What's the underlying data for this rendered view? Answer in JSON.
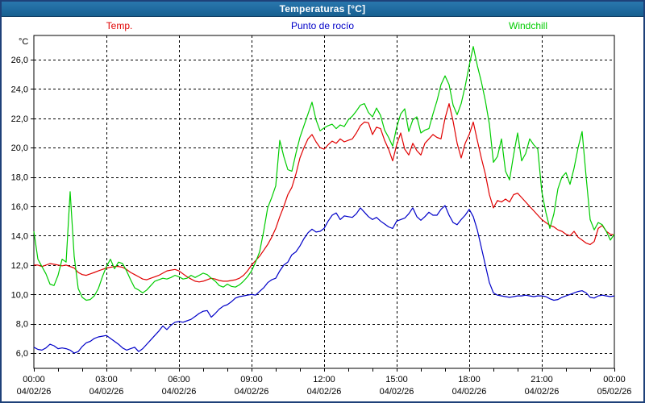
{
  "window": {
    "title": "Temperaturas [°C]"
  },
  "colors": {
    "titlebar_background": "#1f6a9f",
    "window_border": "#1e4179",
    "plot_background": "#ffffff",
    "grid_color": "#000000",
    "temp_color": "#e00000",
    "dew_point_color": "#0000c8",
    "windchill_color": "#00cc00"
  },
  "chart_data": {
    "type": "line",
    "title": "Temperaturas [°C]",
    "y_unit_label": "°C",
    "grid": "dashed",
    "legend_position": "top",
    "ylim": [
      5,
      27.6
    ],
    "xlim_hours": [
      0,
      24
    ],
    "y_grid_step": 2,
    "x_major_grid_hours": 3,
    "x_axis_minor_tick_hours": 1,
    "sample_interval_minutes": 10,
    "y_ticks": [
      {
        "value": 26,
        "label": "26,0"
      },
      {
        "value": 24,
        "label": "24,0"
      },
      {
        "value": 22,
        "label": "22,0"
      },
      {
        "value": 20,
        "label": "20,0"
      },
      {
        "value": 18,
        "label": "18,0"
      },
      {
        "value": 16,
        "label": "16,0"
      },
      {
        "value": 14,
        "label": "14,0"
      },
      {
        "value": 12,
        "label": "12,0"
      },
      {
        "value": 10,
        "label": "10,0"
      },
      {
        "value": 8,
        "label": "8,0"
      },
      {
        "value": 6,
        "label": "6,0"
      }
    ],
    "x_ticks": [
      {
        "hour": 0,
        "time": "00:00",
        "date": "04/02/26"
      },
      {
        "hour": 3,
        "time": "03:00",
        "date": "04/02/26"
      },
      {
        "hour": 6,
        "time": "06:00",
        "date": "04/02/26"
      },
      {
        "hour": 9,
        "time": "09:00",
        "date": "04/02/26"
      },
      {
        "hour": 12,
        "time": "12:00",
        "date": "04/02/26"
      },
      {
        "hour": 15,
        "time": "15:00",
        "date": "04/02/26"
      },
      {
        "hour": 18,
        "time": "18:00",
        "date": "04/02/26"
      },
      {
        "hour": 21,
        "time": "21:00",
        "date": "04/02/26"
      },
      {
        "hour": 24,
        "time": "00:00",
        "date": "05/02/26"
      }
    ],
    "series": [
      {
        "name": "Temp.",
        "color": "#e00000",
        "values": [
          12.0,
          12.0,
          11.9,
          12.0,
          12.1,
          12.05,
          12.0,
          11.95,
          12.0,
          11.9,
          11.8,
          11.5,
          11.35,
          11.3,
          11.4,
          11.5,
          11.6,
          11.7,
          11.8,
          11.85,
          11.9,
          11.9,
          11.85,
          11.7,
          11.5,
          11.35,
          11.2,
          11.05,
          11.0,
          11.1,
          11.2,
          11.3,
          11.45,
          11.6,
          11.65,
          11.7,
          11.6,
          11.4,
          11.2,
          11.05,
          10.9,
          10.85,
          10.9,
          11.0,
          11.1,
          11.05,
          10.95,
          10.9,
          10.9,
          10.95,
          11.0,
          11.1,
          11.3,
          11.6,
          12.0,
          12.3,
          12.6,
          13.0,
          13.4,
          13.9,
          14.5,
          15.3,
          16.0,
          16.8,
          17.3,
          18.2,
          19.3,
          20.0,
          20.6,
          20.9,
          20.4,
          20.0,
          19.9,
          20.2,
          20.45,
          20.3,
          20.6,
          20.4,
          20.5,
          20.6,
          21.0,
          21.5,
          21.75,
          21.7,
          20.9,
          21.4,
          21.3,
          20.5,
          19.9,
          19.1,
          20.2,
          21.0,
          19.9,
          19.5,
          20.3,
          19.8,
          19.5,
          20.3,
          20.6,
          20.9,
          20.7,
          20.6,
          22.0,
          23.0,
          21.8,
          20.3,
          19.3,
          20.3,
          20.9,
          21.75,
          20.5,
          19.3,
          18.2,
          16.8,
          15.9,
          16.4,
          16.3,
          16.5,
          16.3,
          16.8,
          16.9,
          16.6,
          16.3,
          16.0,
          15.7,
          15.4,
          15.1,
          14.9,
          14.7,
          14.6,
          14.4,
          14.3,
          14.1,
          14.0,
          14.3,
          13.9,
          13.7,
          13.5,
          13.4,
          13.6,
          14.5,
          14.7,
          14.3,
          14.1,
          14.05
        ]
      },
      {
        "name": "Punto de rocío",
        "color": "#0000c8",
        "values": [
          6.4,
          6.25,
          6.2,
          6.35,
          6.6,
          6.5,
          6.3,
          6.35,
          6.3,
          6.2,
          6.0,
          6.1,
          6.45,
          6.7,
          6.8,
          7.0,
          7.1,
          7.15,
          7.2,
          7.0,
          6.8,
          6.6,
          6.35,
          6.2,
          6.3,
          6.4,
          6.1,
          6.3,
          6.6,
          6.9,
          7.2,
          7.5,
          7.85,
          7.6,
          7.9,
          8.1,
          8.15,
          8.1,
          8.2,
          8.3,
          8.5,
          8.7,
          8.85,
          8.9,
          8.45,
          8.7,
          9.0,
          9.2,
          9.3,
          9.5,
          9.75,
          9.85,
          9.9,
          9.95,
          10.0,
          9.95,
          10.2,
          10.45,
          10.8,
          11.0,
          11.1,
          11.6,
          12.0,
          12.2,
          12.7,
          12.9,
          13.3,
          13.8,
          14.2,
          14.45,
          14.25,
          14.3,
          14.5,
          15.0,
          15.4,
          15.55,
          15.1,
          15.35,
          15.3,
          15.25,
          15.5,
          15.9,
          15.6,
          15.3,
          15.1,
          15.25,
          15.0,
          14.8,
          14.6,
          14.5,
          15.0,
          15.1,
          15.2,
          15.5,
          15.9,
          15.3,
          15.05,
          15.3,
          15.6,
          15.4,
          15.4,
          15.8,
          16.05,
          15.4,
          14.9,
          14.75,
          15.1,
          15.4,
          15.8,
          15.3,
          14.4,
          13.2,
          12.0,
          10.8,
          10.1,
          9.95,
          9.9,
          9.85,
          9.8,
          9.85,
          9.9,
          9.9,
          9.95,
          9.9,
          9.85,
          9.9,
          9.9,
          9.85,
          9.7,
          9.6,
          9.65,
          9.8,
          9.9,
          10.0,
          10.1,
          10.2,
          10.25,
          10.1,
          9.8,
          9.75,
          9.9,
          9.95,
          9.9,
          9.85,
          9.9
        ]
      },
      {
        "name": "Windchill",
        "color": "#00cc00",
        "values": [
          14.3,
          12.4,
          11.9,
          11.4,
          10.7,
          10.6,
          11.3,
          12.4,
          12.2,
          17.0,
          12.6,
          10.4,
          9.8,
          9.6,
          9.65,
          9.9,
          10.4,
          11.2,
          11.9,
          12.4,
          11.75,
          12.2,
          12.1,
          11.6,
          11.0,
          10.45,
          10.3,
          10.1,
          10.3,
          10.6,
          10.9,
          11.0,
          11.1,
          11.05,
          11.15,
          11.3,
          11.2,
          11.05,
          11.1,
          11.3,
          11.15,
          11.3,
          11.45,
          11.35,
          11.1,
          10.9,
          10.6,
          10.5,
          10.7,
          10.55,
          10.5,
          10.65,
          10.9,
          11.2,
          11.6,
          12.2,
          12.9,
          14.3,
          15.9,
          16.6,
          17.4,
          20.5,
          19.4,
          18.5,
          18.4,
          19.6,
          20.7,
          21.5,
          22.3,
          23.1,
          21.9,
          21.15,
          21.35,
          21.5,
          21.6,
          21.3,
          21.55,
          21.45,
          21.9,
          22.15,
          22.5,
          22.9,
          23.0,
          22.4,
          22.1,
          22.7,
          22.2,
          21.2,
          20.7,
          20.1,
          21.4,
          22.3,
          22.65,
          21.1,
          21.9,
          22.1,
          21.0,
          21.2,
          21.3,
          22.3,
          23.2,
          24.3,
          24.9,
          24.3,
          22.9,
          22.25,
          23.0,
          24.2,
          25.6,
          26.9,
          25.6,
          24.5,
          23.2,
          21.6,
          19.0,
          19.4,
          20.6,
          18.4,
          17.8,
          19.5,
          21.0,
          19.1,
          19.6,
          20.6,
          20.2,
          19.9,
          17.0,
          15.6,
          14.5,
          15.5,
          17.2,
          18.0,
          18.3,
          17.5,
          18.6,
          20.0,
          21.1,
          18.0,
          15.1,
          14.4,
          14.9,
          14.75,
          14.3,
          13.7,
          14.1
        ]
      }
    ]
  }
}
